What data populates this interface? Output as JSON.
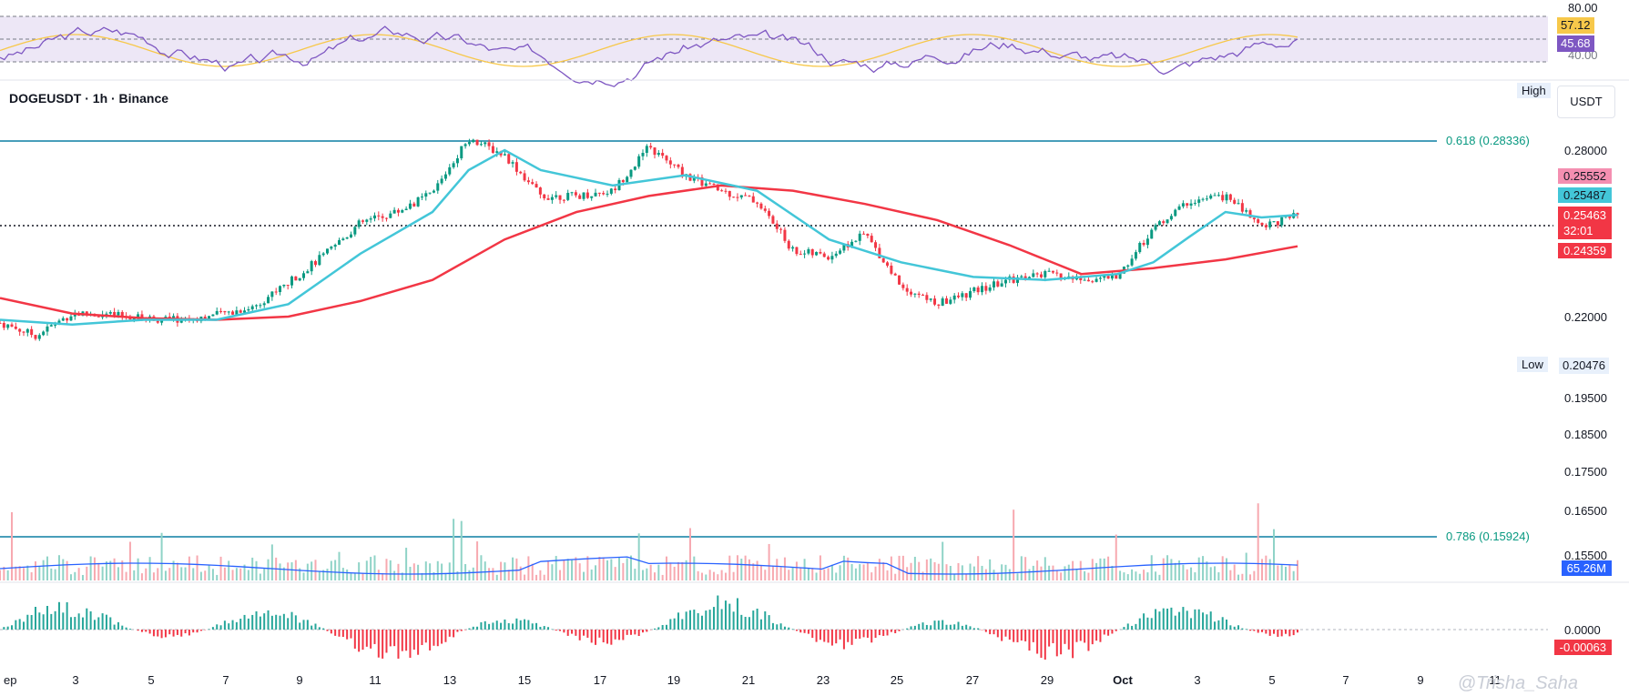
{
  "header": {
    "symbol": "DOGEUSDT · 1h · Binance",
    "currency": "USDT",
    "high_label": "High",
    "low_label": "Low",
    "low_value": "0.20476"
  },
  "rsi": {
    "top_label": "80.00",
    "value_ma": "57.12",
    "value_rsi": "45.68",
    "bottom_label": "40.00",
    "rsi_color": "#7e57c2",
    "ma_color": "#f7c84a"
  },
  "price_tags": {
    "last_top": "0.25552",
    "ma_fast": "0.25487",
    "current": "0.25463",
    "countdown": "32:01",
    "ma_slow": "0.24359",
    "volume": "65.26M",
    "macd": "-0.00063"
  },
  "fib": {
    "level_618": "0.618 (0.28336)",
    "level_786": "0.786 (0.15924)"
  },
  "watermark": "@Trisha_Saha",
  "colors": {
    "up": "#089981",
    "down": "#f23645",
    "ma_fast": "#43c6d8",
    "ma_slow": "#f23645",
    "fib": "#0b7fa3",
    "volume_ma": "#2962ff"
  },
  "chart_data": {
    "type": "line",
    "title": "DOGEUSDT · 1h · Binance",
    "x_tick_labels": [
      "ep",
      "3",
      "5",
      "7",
      "9",
      "11",
      "13",
      "15",
      "17",
      "19",
      "21",
      "23",
      "25",
      "27",
      "29",
      "Oct",
      "3",
      "5",
      "7",
      "9",
      "11"
    ],
    "y_tick_labels": [
      "0.28000",
      "0.22000",
      "0.19500",
      "0.18500",
      "0.17500",
      "0.16500",
      "0.15500"
    ],
    "macd_zero_label": "0.0000",
    "ylim": [
      0.15,
      0.3
    ],
    "log_scale": true,
    "series": [
      {
        "name": "price",
        "x": [
          0,
          1,
          2,
          3,
          4,
          5,
          6,
          7,
          8,
          9,
          10,
          11,
          12,
          13,
          14,
          15,
          16,
          17,
          18,
          19,
          20,
          21,
          22,
          23,
          24,
          25,
          26,
          27,
          28,
          29,
          30,
          31,
          32,
          33,
          34,
          35,
          36
        ],
        "values": [
          0.218,
          0.214,
          0.221,
          0.2205,
          0.2195,
          0.219,
          0.2205,
          0.223,
          0.231,
          0.2405,
          0.252,
          0.256,
          0.263,
          0.285,
          0.278,
          0.262,
          0.262,
          0.264,
          0.281,
          0.27,
          0.264,
          0.26,
          0.242,
          0.24,
          0.248,
          0.23,
          0.224,
          0.228,
          0.232,
          0.234,
          0.232,
          0.233,
          0.25,
          0.26,
          0.262,
          0.251,
          0.2546
        ]
      },
      {
        "name": "ma_fast",
        "x": [
          0,
          2,
          4,
          6,
          8,
          10,
          12,
          13,
          14,
          15,
          17,
          19,
          21,
          23,
          25,
          27,
          29,
          31,
          32,
          33,
          34,
          35,
          36
        ],
        "values": [
          0.219,
          0.2175,
          0.219,
          0.219,
          0.224,
          0.241,
          0.256,
          0.272,
          0.28,
          0.272,
          0.266,
          0.27,
          0.264,
          0.246,
          0.238,
          0.233,
          0.232,
          0.234,
          0.238,
          0.247,
          0.256,
          0.254,
          0.2549
        ]
      },
      {
        "name": "ma_slow",
        "x": [
          0,
          2,
          4,
          6,
          8,
          10,
          12,
          14,
          16,
          18,
          20,
          22,
          24,
          26,
          28,
          30,
          32,
          34,
          36
        ],
        "values": [
          0.226,
          0.221,
          0.2195,
          0.219,
          0.22,
          0.225,
          0.232,
          0.246,
          0.256,
          0.262,
          0.266,
          0.264,
          0.259,
          0.253,
          0.244,
          0.234,
          0.236,
          0.239,
          0.2436
        ]
      }
    ]
  }
}
